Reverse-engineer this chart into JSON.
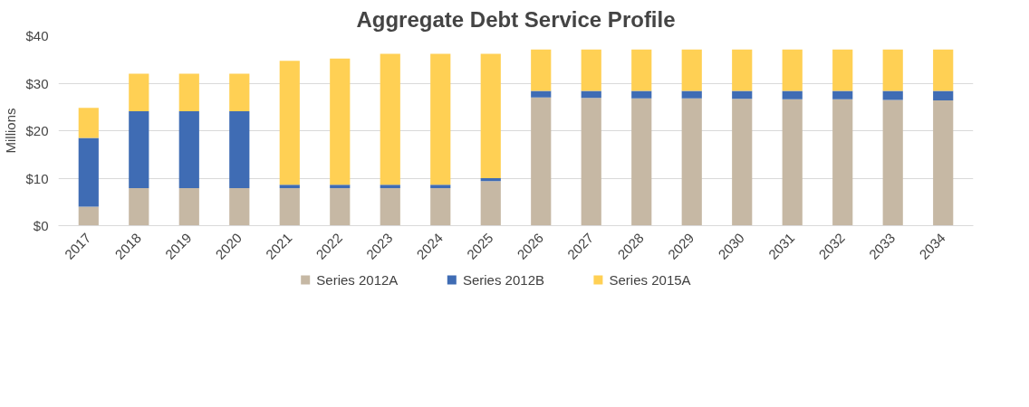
{
  "chart_data": {
    "type": "bar",
    "title": "Aggregate Debt Service Profile",
    "ylabel": "Millions",
    "stacked": true,
    "categories": [
      "2017",
      "2018",
      "2019",
      "2020",
      "2021",
      "2022",
      "2023",
      "2024",
      "2025",
      "2026",
      "2027",
      "2028",
      "2029",
      "2030",
      "2031",
      "2032",
      "2033",
      "2034"
    ],
    "series": [
      {
        "name": "Series 2012A",
        "color": "#c6b8a4",
        "values": [
          4.0,
          7.9,
          7.9,
          7.9,
          7.9,
          7.9,
          7.9,
          7.9,
          9.4,
          27.0,
          26.9,
          26.8,
          26.8,
          26.7,
          26.6,
          26.6,
          26.5,
          26.4
        ]
      },
      {
        "name": "Series 2012B",
        "color": "#3f6cb4",
        "values": [
          14.5,
          16.2,
          16.2,
          16.2,
          0.7,
          0.7,
          0.7,
          0.7,
          0.6,
          1.4,
          1.5,
          1.6,
          1.6,
          1.7,
          1.8,
          1.8,
          1.9,
          2.0
        ]
      },
      {
        "name": "Series 2015A",
        "color": "#ffd054",
        "values": [
          6.3,
          7.9,
          7.9,
          7.9,
          26.1,
          26.6,
          27.6,
          27.6,
          26.2,
          8.7,
          8.7,
          8.7,
          8.7,
          8.7,
          8.7,
          8.7,
          8.7,
          8.7
        ]
      }
    ],
    "ylim": [
      0,
      40
    ],
    "yticks": [
      {
        "value": 0,
        "label": "$0"
      },
      {
        "value": 10,
        "label": "$10"
      },
      {
        "value": 20,
        "label": "$20"
      },
      {
        "value": 30,
        "label": "$30"
      },
      {
        "value": 40,
        "label": "$40"
      }
    ],
    "grid": "y",
    "legend": "bottom"
  }
}
